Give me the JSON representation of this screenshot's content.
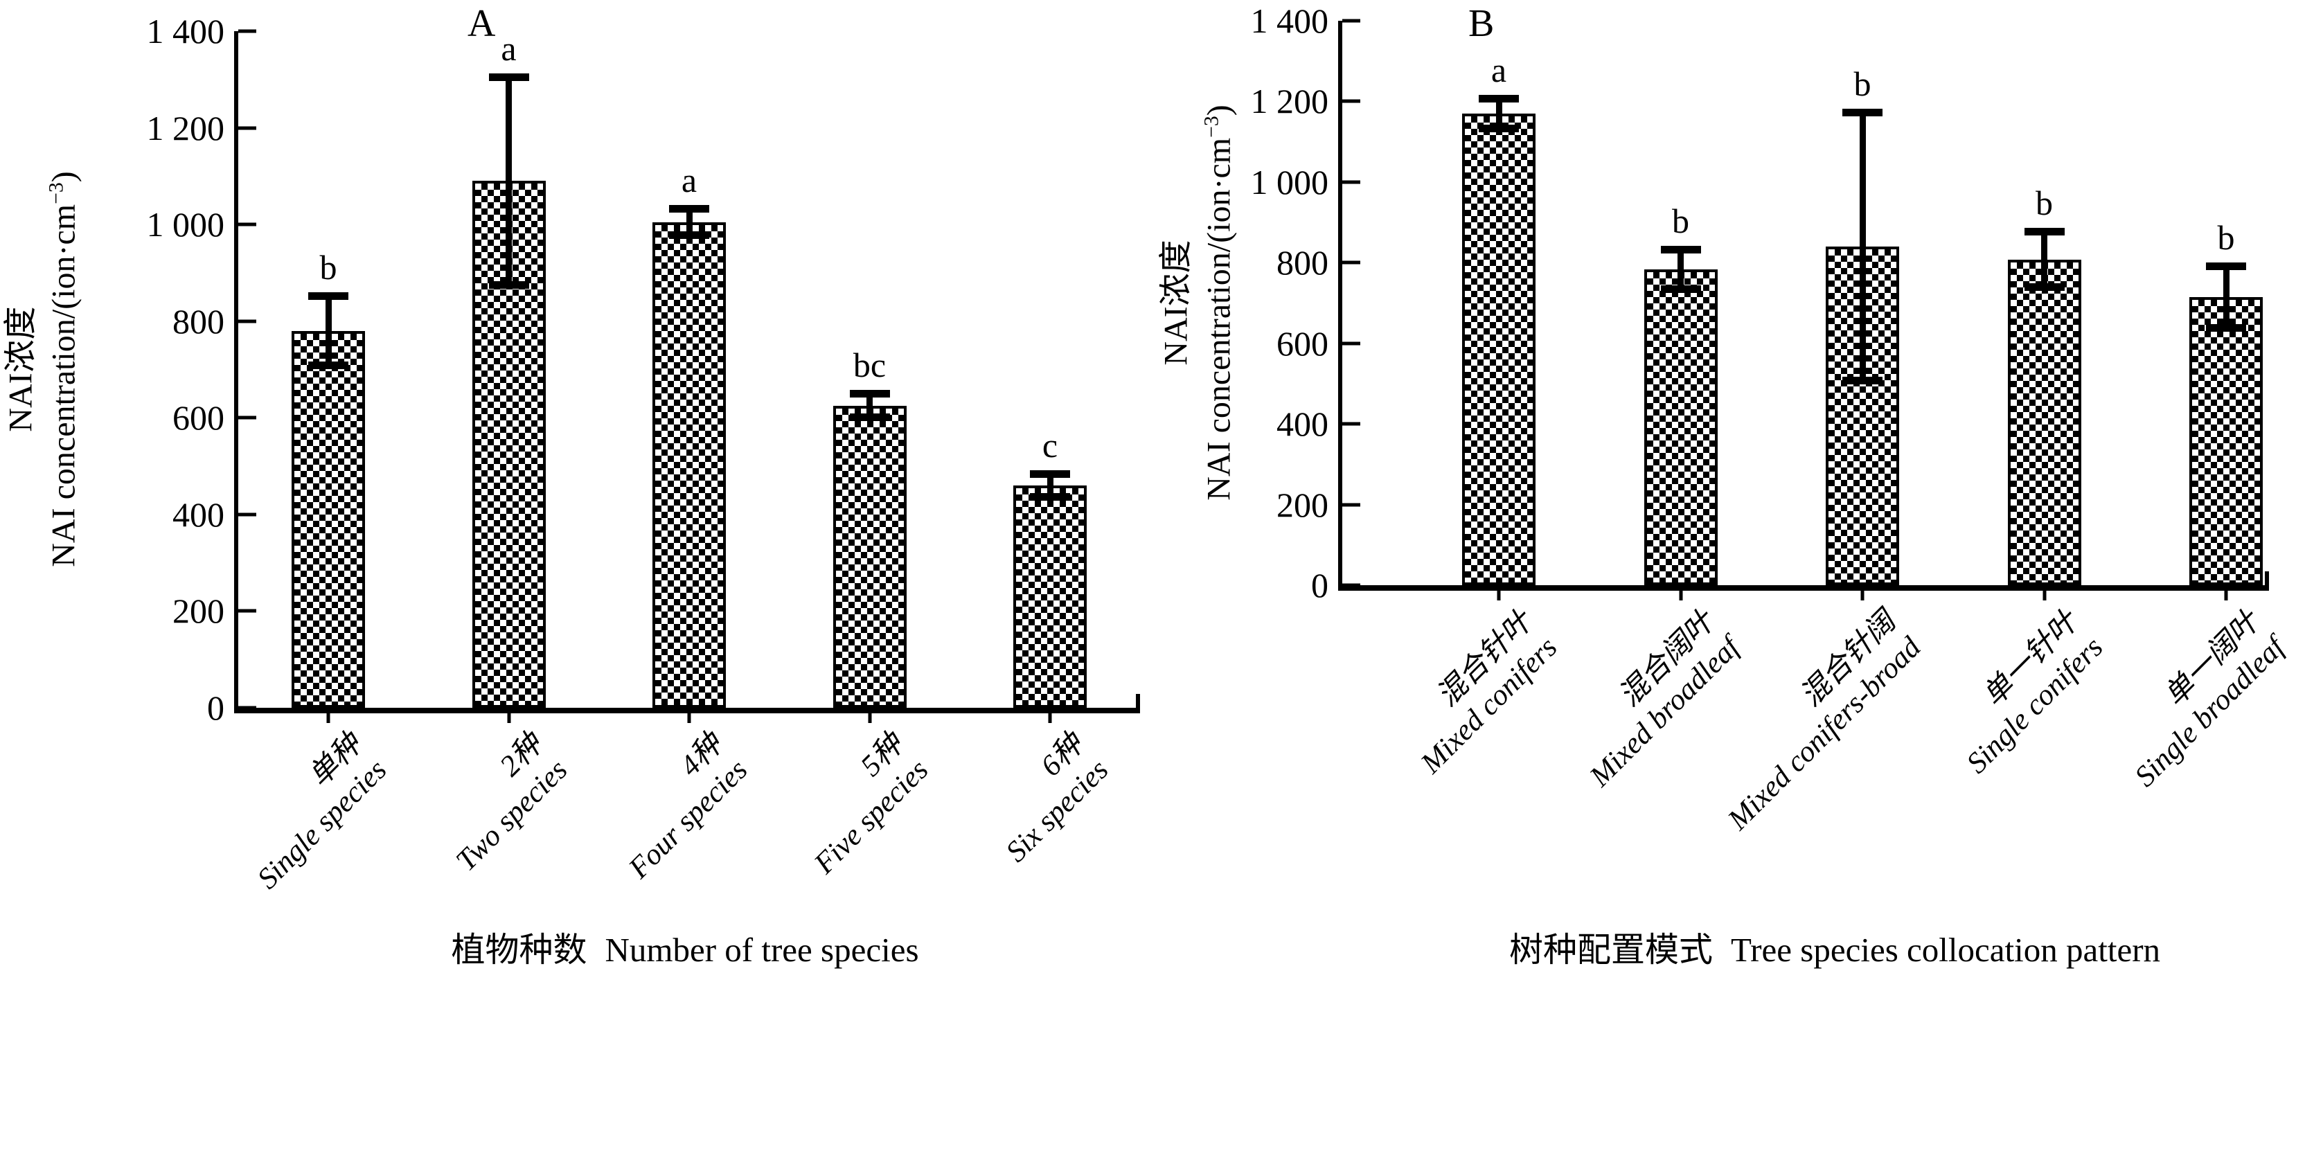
{
  "style": {
    "background": "#ffffff",
    "axis_color": "#000000",
    "bar_pattern_fg": "#000000",
    "bar_pattern_bg": "#ffffff",
    "error_bar_color": "#000000"
  },
  "chart_data": [
    {
      "type": "bar",
      "panel_label": "A",
      "xlabel_cn": "植物种数",
      "xlabel_en": "Number of tree species",
      "ylabel_cn": "NAI浓度",
      "ylabel_en_pre": "NAI concentration/(ion·cm",
      "ylabel_en_sup": "−3",
      "ylabel_en_post": ")",
      "ylim": [
        0,
        1400
      ],
      "grid": false,
      "legend": "none",
      "yticks": [
        {
          "value": 0,
          "label": "0"
        },
        {
          "value": 200,
          "label": "200"
        },
        {
          "value": 400,
          "label": "400"
        },
        {
          "value": 600,
          "label": "600"
        },
        {
          "value": 800,
          "label": "800"
        },
        {
          "value": 1000,
          "label": "1 000"
        },
        {
          "value": 1200,
          "label": "1 200"
        },
        {
          "value": 1400,
          "label": "1 400"
        }
      ],
      "bars": [
        {
          "label_cn": "单种",
          "label_en": "Single species",
          "value": 780,
          "error": 72,
          "letter": "b"
        },
        {
          "label_cn": "2种",
          "label_en": "Two species",
          "value": 1090,
          "error": 216,
          "letter": "a"
        },
        {
          "label_cn": "4种",
          "label_en": "Four species",
          "value": 1005,
          "error": 28,
          "letter": "a"
        },
        {
          "label_cn": "5种",
          "label_en": "Five species",
          "value": 625,
          "error": 25,
          "letter": "bc"
        },
        {
          "label_cn": "6种",
          "label_en": "Six species",
          "value": 460,
          "error": 25,
          "letter": "c"
        }
      ]
    },
    {
      "type": "bar",
      "panel_label": "B",
      "xlabel_cn": "树种配置模式",
      "xlabel_en": "Tree species collocation pattern",
      "ylabel_cn": "NAI浓度",
      "ylabel_en_pre": "NAI concentration/(ion·cm",
      "ylabel_en_sup": "−3",
      "ylabel_en_post": ")",
      "ylim": [
        0,
        1400
      ],
      "grid": false,
      "legend": "none",
      "yticks": [
        {
          "value": 0,
          "label": "0"
        },
        {
          "value": 200,
          "label": "200"
        },
        {
          "value": 400,
          "label": "400"
        },
        {
          "value": 600,
          "label": "600"
        },
        {
          "value": 800,
          "label": "800"
        },
        {
          "value": 1000,
          "label": "1 000"
        },
        {
          "value": 1200,
          "label": "1 200"
        },
        {
          "value": 1400,
          "label": "1 400"
        }
      ],
      "bars": [
        {
          "label_cn": "混合针叶",
          "label_en": "Mixed conifers",
          "value": 1170,
          "error": 38,
          "letter": "a"
        },
        {
          "label_cn": "混合阔叶",
          "label_en": "Mixed broadleaf",
          "value": 783,
          "error": 50,
          "letter": "b"
        },
        {
          "label_cn": "混合针阔",
          "label_en": "Mixed conifers-broad",
          "value": 840,
          "error": 333,
          "letter": "b"
        },
        {
          "label_cn": "单一针叶",
          "label_en": "Single conifers",
          "value": 808,
          "error": 70,
          "letter": "b"
        },
        {
          "label_cn": "单一阔叶",
          "label_en": "Single broadleaf",
          "value": 715,
          "error": 77,
          "letter": "b"
        }
      ]
    }
  ]
}
